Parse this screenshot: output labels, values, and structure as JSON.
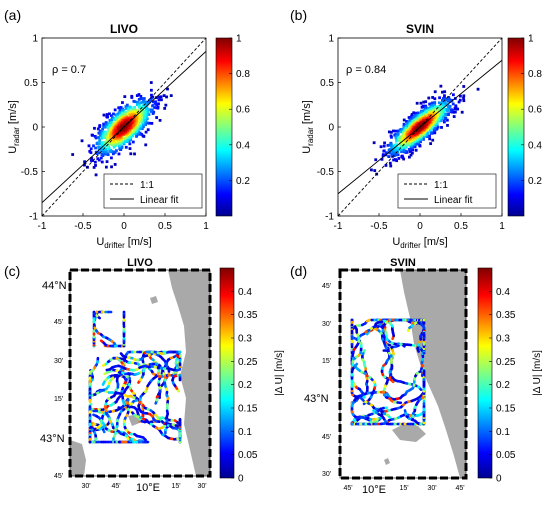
{
  "chart_data": [
    {
      "type": "scatter",
      "panel_label": "(a)",
      "title": "LIVO",
      "rho_text": "ρ = 0.7",
      "xlabel": "U",
      "xlabel_sub": "drifter",
      "xlabel_unit": " [m/s]",
      "ylabel": "U",
      "ylabel_sub": "radar",
      "ylabel_unit": " [m/s]",
      "xlim": [
        -1,
        1
      ],
      "ylim": [
        -1,
        1
      ],
      "xticks": [
        -1,
        -0.5,
        0,
        0.5,
        1
      ],
      "yticks": [
        -1,
        -0.5,
        0,
        0.5,
        1
      ],
      "fit": {
        "slope": 0.85,
        "intercept": 0.0
      },
      "identity": {
        "slope": 1,
        "intercept": 0
      },
      "legend": [
        {
          "label": "1:1",
          "style": "dashed"
        },
        {
          "label": "Linear fit",
          "style": "solid"
        }
      ],
      "legend_position": "bottom-right",
      "colorbar": {
        "ticks": [
          0.2,
          0.4,
          0.6,
          0.8,
          1
        ],
        "range": [
          0,
          1
        ],
        "colormap": "jet"
      },
      "cloud": {
        "center": [
          0,
          0
        ],
        "spread_x": 0.18,
        "spread_y": 0.16,
        "correlation": 0.7
      }
    },
    {
      "type": "scatter",
      "panel_label": "(b)",
      "title": "SVIN",
      "rho_text": "ρ = 0.84",
      "xlabel": "U",
      "xlabel_sub": "drifter",
      "xlabel_unit": " [m/s]",
      "ylabel": "U",
      "ylabel_sub": "radar",
      "ylabel_unit": " [m/s]",
      "xlim": [
        -1,
        1
      ],
      "ylim": [
        -1,
        1
      ],
      "xticks": [
        -1,
        -0.5,
        0,
        0.5,
        1
      ],
      "yticks": [
        -1,
        -0.5,
        0,
        0.5,
        1
      ],
      "fit": {
        "slope": 0.75,
        "intercept": 0.0
      },
      "identity": {
        "slope": 1,
        "intercept": 0
      },
      "legend": [
        {
          "label": "1:1",
          "style": "dashed"
        },
        {
          "label": "Linear fit",
          "style": "solid"
        }
      ],
      "legend_position": "bottom-right",
      "colorbar": {
        "ticks": [
          0.2,
          0.4,
          0.6,
          0.8,
          1
        ],
        "range": [
          0,
          1
        ],
        "colormap": "jet"
      },
      "cloud": {
        "center": [
          0,
          0
        ],
        "spread_x": 0.2,
        "spread_y": 0.16,
        "correlation": 0.84
      }
    },
    {
      "type": "map",
      "panel_label": "(c)",
      "title": "LIVO",
      "lat_ticks": [
        "44°N",
        "45'",
        "30'",
        "15'",
        "43°N",
        "45'"
      ],
      "lon_ticks": [
        "30'",
        "45'",
        "10°E",
        "15'",
        "30'"
      ],
      "colorbar": {
        "label": "|Δ U| [m/s]",
        "ticks": [
          0,
          0.05,
          0.1,
          0.15,
          0.2,
          0.25,
          0.3,
          0.35,
          0.4
        ],
        "range": [
          0,
          0.45
        ],
        "colormap": "jet"
      },
      "land_color": "#a9a9a9"
    },
    {
      "type": "map",
      "panel_label": "(d)",
      "title": "SVIN",
      "lat_ticks": [
        "45'",
        "30'",
        "15'",
        "43°N",
        "45'",
        "30'"
      ],
      "lon_ticks": [
        "45'",
        "10°E",
        "15'",
        "30'",
        "45'"
      ],
      "colorbar": {
        "label": "|Δ U| [m/s]",
        "ticks": [
          0,
          0.05,
          0.1,
          0.15,
          0.2,
          0.25,
          0.3,
          0.35,
          0.4
        ],
        "range": [
          0,
          0.45
        ],
        "colormap": "jet"
      },
      "land_color": "#a9a9a9"
    }
  ]
}
